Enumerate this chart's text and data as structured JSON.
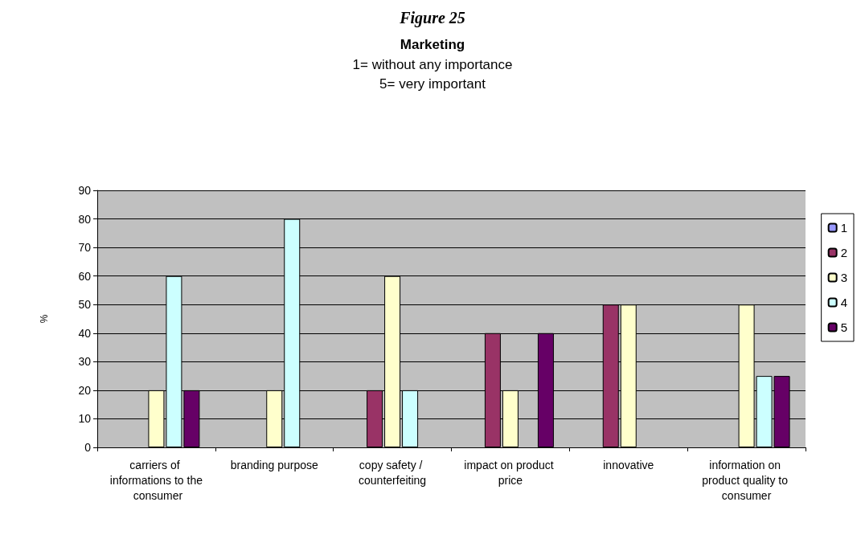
{
  "chart_data": {
    "type": "bar",
    "title": "Marketing",
    "subtitle": "1= without any importance\n5= very important",
    "ylabel": "%",
    "annotations": [
      "Figure 25"
    ],
    "categories": [
      "carriers of informations to the consumer",
      "branding purpose",
      "copy safety / counterfeiting",
      "impact on product price",
      "innovative",
      "information on product quality to consumer"
    ],
    "series": [
      {
        "name": "1",
        "color": "#9999ff",
        "values": [
          null,
          null,
          null,
          null,
          null,
          null
        ]
      },
      {
        "name": "2",
        "color": "#993366",
        "values": [
          null,
          null,
          20,
          40,
          50,
          null
        ]
      },
      {
        "name": "3",
        "color": "#ffffcc",
        "values": [
          20,
          20,
          60,
          20,
          50,
          50
        ]
      },
      {
        "name": "4",
        "color": "#ccffff",
        "values": [
          60,
          80,
          20,
          null,
          null,
          25
        ]
      },
      {
        "name": "5",
        "color": "#660066",
        "values": [
          20,
          null,
          null,
          40,
          null,
          25
        ]
      }
    ],
    "ylim": [
      0,
      90
    ],
    "yticks": [
      0,
      10,
      20,
      30,
      40,
      50,
      60,
      70,
      80,
      90
    ],
    "grid": "y",
    "legend": "right"
  }
}
